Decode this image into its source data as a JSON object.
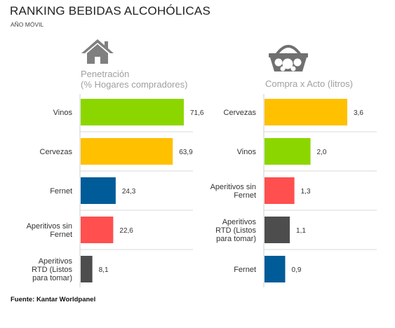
{
  "header": {
    "title": "RANKING BEBIDAS ALCOHÓLICAS",
    "subtitle": "AÑO MÓVIL"
  },
  "footer": {
    "source": "Fuente: Kantar Worldpanel"
  },
  "icons": {
    "left": "house-icon",
    "right": "shopping-basket-icon"
  },
  "colors": {
    "vinos": "#8cd600",
    "cervezas": "#ffc000",
    "fernet": "#005b99",
    "aperitivos_sin_fernet": "#ff4f4f",
    "aperitivos_rtd": "#4d4d4d"
  },
  "chart_data": [
    {
      "type": "bar",
      "orientation": "horizontal",
      "title_lines": [
        "Penetración",
        "(% Hogares compradores)"
      ],
      "categories": [
        [
          "Vinos"
        ],
        [
          "Cervezas"
        ],
        [
          "Fernet"
        ],
        [
          "Aperitivos sin",
          "Fernet"
        ],
        [
          "Aperitivos",
          "RTD (Listos",
          "para tomar)"
        ]
      ],
      "values": [
        71.6,
        63.9,
        24.3,
        22.6,
        8.1
      ],
      "value_labels": [
        "71,6",
        "63,9",
        "24,3",
        "22,6",
        "8,1"
      ],
      "bar_colors": [
        "#8cd600",
        "#ffc000",
        "#005b99",
        "#ff4f4f",
        "#4d4d4d"
      ],
      "xlim": [
        0,
        100
      ]
    },
    {
      "type": "bar",
      "orientation": "horizontal",
      "title_lines": [
        "Compra x Acto (litros)"
      ],
      "categories": [
        [
          "Cervezas"
        ],
        [
          "Vinos"
        ],
        [
          "Aperitivos sin",
          "Fernet"
        ],
        [
          "Aperitivos",
          "RTD (Listos",
          "para tomar)"
        ],
        [
          "Fernet"
        ]
      ],
      "values": [
        3.6,
        2.0,
        1.3,
        1.1,
        0.9
      ],
      "value_labels": [
        "3,6",
        "2,0",
        "1,3",
        "1,1",
        "0,9"
      ],
      "bar_colors": [
        "#ffc000",
        "#8cd600",
        "#ff4f4f",
        "#4d4d4d",
        "#005b99"
      ],
      "xlim": [
        0,
        4
      ]
    }
  ]
}
